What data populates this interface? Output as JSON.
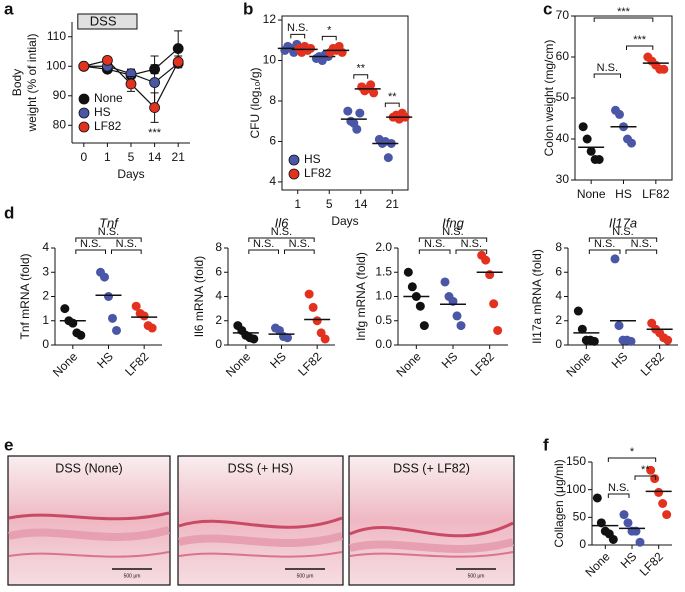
{
  "chart_data": [
    {
      "type": "line",
      "panel": "a",
      "ylabel": [
        "Body",
        "weight (% of intial)"
      ],
      "xlabel": "Days",
      "categories": [
        "0",
        "1",
        "5",
        "14",
        "21"
      ],
      "series": [
        {
          "name": "None",
          "color": "#111111",
          "values": [
            100,
            99,
            97,
            99,
            106
          ],
          "errors": [
            0.5,
            1,
            2,
            1.5,
            6
          ]
        },
        {
          "name": "HS",
          "color": "#4a56a6",
          "values": [
            100,
            100,
            97.5,
            94.5,
            101
          ],
          "errors": [
            0.5,
            1,
            1.5,
            9,
            1
          ]
        },
        {
          "name": "LF82",
          "color": "#e2321f",
          "values": [
            100,
            102,
            94,
            86,
            101.5
          ],
          "errors": [
            0.5,
            1,
            2.5,
            5,
            2
          ]
        }
      ],
      "ylim": [
        74,
        115
      ],
      "yticks": [
        80,
        90,
        100,
        110
      ],
      "legend": "lower left",
      "shade": {
        "text": "DSS",
        "from": "0",
        "to": "5"
      },
      "annotations": [
        {
          "text": "***",
          "category": "14"
        }
      ]
    },
    {
      "type": "dot",
      "panel": "b",
      "ylabel": "CFU (log₁₀/g)",
      "xlabel": "Days",
      "box": true,
      "categories": [
        "1",
        "5",
        "14",
        "21"
      ],
      "series": [
        {
          "name": "HS",
          "color": "#4a56a6",
          "values": [
            [
              10.5,
              10.7,
              10.6,
              10.4,
              10.8
            ],
            [
              10.1,
              10.2,
              10.0,
              10.3,
              10.2
            ],
            [
              7.5,
              7.0,
              6.9,
              6.6,
              7.4
            ],
            [
              6.1,
              5.9,
              6.0,
              5.2,
              5.9
            ]
          ],
          "means": [
            10.6,
            10.2,
            7.1,
            5.9
          ]
        },
        {
          "name": "LF82",
          "color": "#e2321f",
          "values": [
            [
              10.6,
              10.4,
              10.7,
              10.5,
              10.6
            ],
            [
              10.4,
              10.6,
              10.5,
              10.7,
              10.4
            ],
            [
              8.7,
              8.5,
              8.6,
              8.8,
              8.4
            ],
            [
              7.2,
              7.3,
              7.1,
              7.4,
              7.2
            ]
          ],
          "means": [
            10.55,
            10.5,
            8.6,
            7.2
          ]
        }
      ],
      "ylim": [
        3.6,
        12.2
      ],
      "yticks": [
        4,
        6,
        8,
        10,
        12
      ],
      "legend": "lower left",
      "annotations": [
        {
          "text": "N.S.",
          "category": "1"
        },
        {
          "text": "*",
          "category": "5"
        },
        {
          "text": "**",
          "category": "14"
        },
        {
          "text": "**",
          "category": "21"
        }
      ]
    },
    {
      "type": "dot",
      "panel": "c",
      "ylabel": "Colon weight (mg/cm)",
      "box": true,
      "categories": [
        "None",
        "HS",
        "LF82"
      ],
      "colors": [
        "#111111",
        "#4a56a6",
        "#e2321f"
      ],
      "values": [
        [
          43,
          40,
          37,
          35,
          35
        ],
        [
          47,
          46,
          43,
          40,
          39
        ],
        [
          60,
          59,
          58,
          57,
          57
        ]
      ],
      "means": [
        38,
        43,
        58.5
      ],
      "ylim": [
        30,
        70
      ],
      "yticks": [
        30,
        40,
        50,
        60,
        70
      ],
      "annotations": [
        {
          "text": "***",
          "between": [
            "None",
            "LF82"
          ]
        },
        {
          "text": "***",
          "between": [
            "HS",
            "LF82"
          ]
        },
        {
          "text": "N.S.",
          "between": [
            "None",
            "HS"
          ]
        }
      ]
    },
    {
      "type": "dot",
      "panel": "d",
      "title": "Tnf",
      "ylabel": "Tnf mRNA (fold)",
      "categories": [
        "None",
        "HS",
        "LF82"
      ],
      "colors": [
        "#111111",
        "#4a56a6",
        "#e2321f"
      ],
      "values": [
        [
          1.5,
          1.0,
          0.9,
          0.5,
          0.4
        ],
        [
          3.0,
          2.8,
          2.0,
          1.1,
          0.6
        ],
        [
          1.6,
          1.3,
          1.2,
          0.8,
          0.7
        ]
      ],
      "means": [
        1.0,
        2.05,
        1.15
      ],
      "ylim": [
        0,
        4
      ],
      "yticks": [
        0,
        1,
        2,
        3,
        4
      ],
      "annotations": [
        {
          "text": "N.S.",
          "between": [
            "None",
            "LF82"
          ]
        },
        {
          "text": "N.S.",
          "between": [
            "None",
            "HS"
          ]
        },
        {
          "text": "N.S.",
          "between": [
            "HS",
            "LF82"
          ]
        }
      ]
    },
    {
      "type": "dot",
      "title": "Il6",
      "ylabel": "Il6 mRNA (fold)",
      "categories": [
        "None",
        "HS",
        "LF82"
      ],
      "colors": [
        "#111111",
        "#4a56a6",
        "#e2321f"
      ],
      "values": [
        [
          1.6,
          1.2,
          0.8,
          0.6,
          0.5
        ],
        [
          1.4,
          1.2,
          0.7,
          0.6
        ],
        [
          4.2,
          3.1,
          2.0,
          1.0,
          0.5
        ]
      ],
      "means": [
        1.0,
        0.9,
        2.1
      ],
      "ylim": [
        0,
        8
      ],
      "yticks": [
        0,
        2,
        4,
        6,
        8
      ],
      "annotations": [
        {
          "text": "N.S.",
          "between": [
            "None",
            "LF82"
          ]
        },
        {
          "text": "N.S.",
          "between": [
            "None",
            "HS"
          ]
        },
        {
          "text": "N.S.",
          "between": [
            "HS",
            "LF82"
          ]
        }
      ]
    },
    {
      "type": "dot",
      "title": "Ifng",
      "ylabel": "Infg mRNA (fold)",
      "categories": [
        "None",
        "HS",
        "LF82"
      ],
      "colors": [
        "#111111",
        "#4a56a6",
        "#e2321f"
      ],
      "values": [
        [
          1.5,
          1.2,
          1.0,
          0.8,
          0.4
        ],
        [
          1.3,
          1.0,
          0.9,
          0.6,
          0.4
        ],
        [
          1.85,
          1.75,
          1.45,
          0.85,
          0.3
        ]
      ],
      "means": [
        1.0,
        0.84,
        1.5
      ],
      "ylim": [
        0,
        2
      ],
      "yticks": [
        {
          "value": 0,
          "label": "0.0"
        },
        0.5,
        {
          "value": 1,
          "label": "1.0"
        },
        1.5,
        {
          "value": 2,
          "label": "2.0"
        }
      ],
      "annotations": [
        {
          "text": "N.S.",
          "between": [
            "None",
            "LF82"
          ]
        },
        {
          "text": "N.S.",
          "between": [
            "None",
            "HS"
          ]
        },
        {
          "text": "N.S.",
          "between": [
            "HS",
            "LF82"
          ]
        }
      ]
    },
    {
      "type": "dot",
      "title": "Il17a",
      "ylabel": "Il17a mRNA (fold)",
      "categories": [
        "None",
        "HS",
        "LF82"
      ],
      "colors": [
        "#111111",
        "#4a56a6",
        "#e2321f"
      ],
      "values": [
        [
          2.8,
          1.3,
          0.4,
          0.4,
          0.3
        ],
        [
          7.1,
          1.6,
          0.4,
          0.4,
          0.3
        ],
        [
          1.8,
          1.3,
          1.0,
          0.6,
          0.4
        ]
      ],
      "means": [
        1.0,
        2.0,
        1.3
      ],
      "ylim": [
        0,
        8
      ],
      "yticks": [
        0,
        2,
        4,
        6,
        8
      ],
      "annotations": [
        {
          "text": "N.S.",
          "between": [
            "None",
            "LF82"
          ]
        },
        {
          "text": "N.S.",
          "between": [
            "None",
            "HS"
          ]
        },
        {
          "text": "N.S.",
          "between": [
            "HS",
            "LF82"
          ]
        }
      ]
    },
    {
      "type": "dot",
      "panel": "f",
      "ylabel": "Collagen (μg/ml)",
      "categories": [
        "None",
        "HS",
        "LF82"
      ],
      "colors": [
        "#111111",
        "#4a56a6",
        "#e2321f"
      ],
      "values": [
        [
          85,
          40,
          25,
          20,
          10
        ],
        [
          55,
          40,
          25,
          25,
          5
        ],
        [
          135,
          120,
          95,
          75,
          55
        ]
      ],
      "means": [
        35,
        30,
        97
      ],
      "ylim": [
        0,
        150
      ],
      "yticks": [
        0,
        50,
        100,
        150
      ],
      "annotations": [
        {
          "text": "*",
          "between": [
            "None",
            "LF82"
          ]
        },
        {
          "text": "**",
          "between": [
            "HS",
            "LF82"
          ]
        },
        {
          "text": "N.S.",
          "between": [
            "None",
            "HS"
          ]
        }
      ]
    }
  ],
  "images": {
    "panel": "e",
    "items": [
      {
        "title": "DSS (None)",
        "scale": "500 μm"
      },
      {
        "title": "DSS (+ HS)",
        "scale": "500 μm"
      },
      {
        "title": "DSS (+ LF82)",
        "scale": "500 μm"
      }
    ]
  }
}
